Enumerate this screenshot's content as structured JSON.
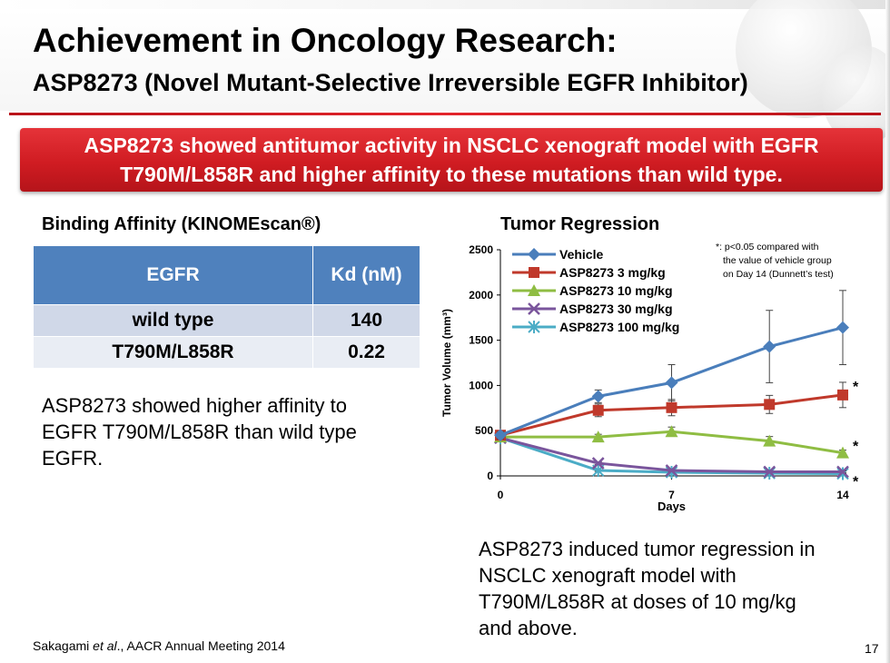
{
  "slide": {
    "title": "Achievement in Oncology Research:",
    "subtitle": "ASP8273 (Novel Mutant-Selective Irreversible EGFR Inhibitor)",
    "banner_line1": "ASP8273 showed antitumor activity in NSCLC xenograft model with EGFR",
    "banner_line2": "T790M/L858R and higher affinity to these mutations than wild type.",
    "page_number": "17"
  },
  "affinity": {
    "heading": "Binding Affinity (KINOMEscan®)",
    "columns": [
      "EGFR",
      "Kd (nM)"
    ],
    "rows": [
      {
        "egfr": "wild type",
        "kd": "140"
      },
      {
        "egfr": "T790M/L858R",
        "kd": "0.22"
      }
    ],
    "text": [
      "ASP8273 showed higher affinity to",
      "EGFR T790M/L858R than wild type",
      "EGFR."
    ]
  },
  "regression": {
    "heading": "Tumor Regression",
    "text": [
      "ASP8273 induced tumor regression in",
      "NSCLC xenograft model with",
      "T790M/L858R at doses of 10 mg/kg",
      "and above."
    ]
  },
  "footer": {
    "cite_author": "Sakagami ",
    "cite_etal": "et al",
    "cite_rest": "., AACR Annual Meeting 2014"
  },
  "chart_data": {
    "type": "line",
    "title": "Tumor Regression",
    "xlabel": "Days",
    "ylabel": "Tumor Volume (mm³)",
    "xlim": [
      0,
      14
    ],
    "ylim": [
      0,
      2500
    ],
    "xticks": [
      0,
      7,
      14
    ],
    "yticks": [
      0,
      500,
      1000,
      1500,
      2000,
      2500
    ],
    "x": [
      0,
      4,
      7,
      11,
      14
    ],
    "series": [
      {
        "name": "Vehicle",
        "color": "#4a7ebb",
        "marker": "diamond",
        "values": [
          450,
          880,
          1030,
          1430,
          1640
        ],
        "errors": [
          40,
          70,
          200,
          400,
          410
        ]
      },
      {
        "name": "ASP8273 3 mg/kg",
        "color": "#c0392b",
        "marker": "square",
        "values": [
          450,
          725,
          755,
          790,
          895
        ],
        "errors": [
          40,
          70,
          90,
          100,
          140
        ],
        "significant": true
      },
      {
        "name": "ASP8273 10 mg/kg",
        "color": "#8fbd43",
        "marker": "triangle",
        "values": [
          430,
          430,
          490,
          385,
          255
        ],
        "errors": [
          30,
          30,
          50,
          50,
          30
        ],
        "significant": true
      },
      {
        "name": "ASP8273 30 mg/kg",
        "color": "#7a559c",
        "marker": "x",
        "values": [
          420,
          140,
          60,
          45,
          45
        ],
        "errors": [
          20,
          15,
          10,
          10,
          10
        ],
        "significant": true
      },
      {
        "name": "ASP8273 100 mg/kg",
        "color": "#4bacc6",
        "marker": "star",
        "values": [
          420,
          60,
          40,
          30,
          25
        ],
        "errors": [
          20,
          10,
          8,
          6,
          5
        ],
        "significant": true
      }
    ],
    "significance_marker": "*",
    "note": [
      "*: p<0.05 compared with",
      "the value of vehicle group",
      "on Day 14 (Dunnett’s test)"
    ],
    "legend_position": "top-left"
  }
}
